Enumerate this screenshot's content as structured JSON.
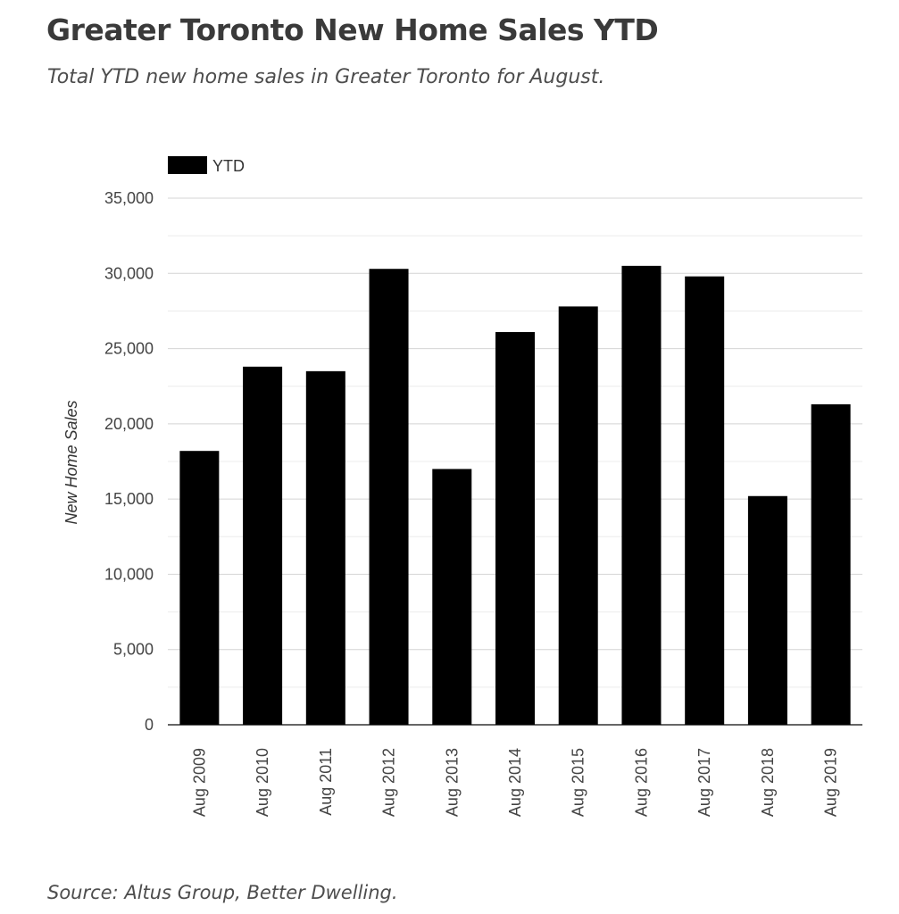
{
  "header": {
    "title": "Greater Toronto New Home Sales YTD",
    "subtitle": "Total YTD new home sales in Greater Toronto for August."
  },
  "footer": {
    "source": "Source: Altus Group, Better Dwelling."
  },
  "chart_data": {
    "type": "bar",
    "categories": [
      "Aug 2009",
      "Aug 2010",
      "Aug 2011",
      "Aug 2012",
      "Aug 2013",
      "Aug 2014",
      "Aug 2015",
      "Aug 2016",
      "Aug 2017",
      "Aug 2018",
      "Aug 2019"
    ],
    "series": [
      {
        "name": "YTD",
        "values": [
          18200,
          23800,
          23500,
          30300,
          17000,
          26100,
          27800,
          30500,
          29800,
          15200,
          21300
        ]
      }
    ],
    "ylabel": "New Home Sales",
    "xlabel": "",
    "ylim": [
      0,
      35000
    ],
    "yticks": [
      0,
      5000,
      10000,
      15000,
      20000,
      25000,
      30000,
      35000
    ],
    "ytick_labels": [
      "0",
      "5,000",
      "10,000",
      "15,000",
      "20,000",
      "25,000",
      "30,000",
      "35,000"
    ],
    "grid": true,
    "legend_position": "top-left",
    "colors": {
      "bar": "#000000",
      "gridline": "#d4d4d4",
      "minor_gridline": "#ececec",
      "axis": "#333333",
      "tick_label": "#444444"
    }
  }
}
